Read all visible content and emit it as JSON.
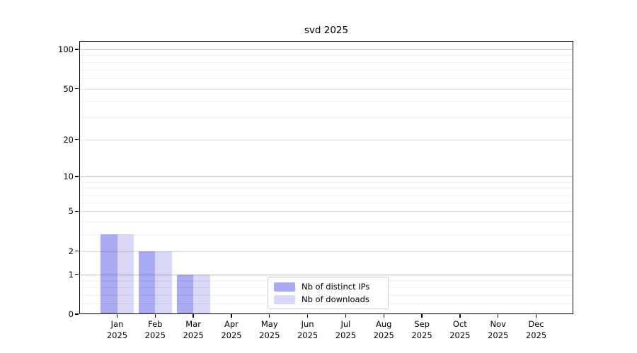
{
  "figure": {
    "background": "#ffffff"
  },
  "chart_data": {
    "type": "bar",
    "title": "svd 2025",
    "categories": [
      "Jan",
      "Feb",
      "Mar",
      "Apr",
      "May",
      "Jun",
      "Jul",
      "Aug",
      "Sep",
      "Oct",
      "Nov",
      "Dec"
    ],
    "x_year": "2025",
    "series": [
      {
        "name": "Nb of distinct IPs",
        "color": "#aaaaf2",
        "values": [
          3,
          2,
          1,
          0,
          0,
          0,
          0,
          0,
          0,
          0,
          0,
          0
        ]
      },
      {
        "name": "Nb of downloads",
        "color": "#d8d8f6",
        "values": [
          3,
          2,
          1,
          0,
          0,
          0,
          0,
          0,
          0,
          0,
          0,
          0
        ]
      }
    ],
    "y_axis": {
      "scale": "log1p",
      "min": 0,
      "max": 100,
      "labeled_ticks": [
        0,
        1,
        2,
        5,
        10,
        20,
        50,
        100
      ],
      "major_gridlines": [
        1,
        10,
        100
      ],
      "mid_gridlines": [
        2,
        5,
        20,
        50
      ],
      "minor_gridlines": [
        0.2,
        0.4,
        0.6,
        0.8,
        3,
        4,
        6,
        7,
        8,
        9,
        30,
        40,
        60,
        70,
        80,
        90
      ]
    },
    "legend": {
      "position": "lower center"
    },
    "grid": true,
    "axis_color": "#000000"
  }
}
